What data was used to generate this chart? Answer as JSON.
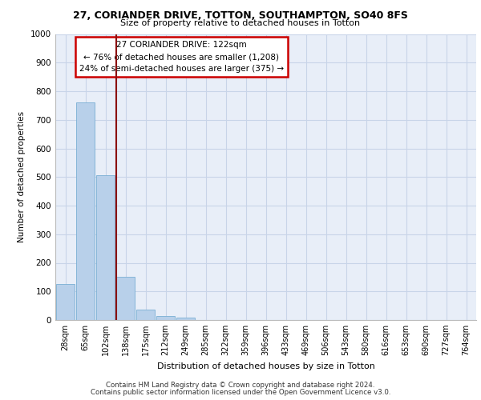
{
  "title1": "27, CORIANDER DRIVE, TOTTON, SOUTHAMPTON, SO40 8FS",
  "title2": "Size of property relative to detached houses in Totton",
  "xlabel": "Distribution of detached houses by size in Totton",
  "ylabel": "Number of detached properties",
  "bar_labels": [
    "28sqm",
    "65sqm",
    "102sqm",
    "138sqm",
    "175sqm",
    "212sqm",
    "249sqm",
    "285sqm",
    "322sqm",
    "359sqm",
    "396sqm",
    "433sqm",
    "469sqm",
    "506sqm",
    "543sqm",
    "580sqm",
    "616sqm",
    "653sqm",
    "690sqm",
    "727sqm",
    "764sqm"
  ],
  "bar_values": [
    127,
    760,
    505,
    152,
    37,
    15,
    8,
    0,
    0,
    0,
    0,
    0,
    0,
    0,
    0,
    0,
    0,
    0,
    0,
    0,
    0
  ],
  "bar_color": "#b8d0ea",
  "bar_edge_color": "#7aafd4",
  "grid_color": "#c8d4e8",
  "background_color": "#e8eef8",
  "vline_color": "#8b1010",
  "annotation_text": "27 CORIANDER DRIVE: 122sqm\n← 76% of detached houses are smaller (1,208)\n24% of semi-detached houses are larger (375) →",
  "annotation_box_color": "#ffffff",
  "annotation_border_color": "#cc0000",
  "ylim": [
    0,
    1000
  ],
  "yticks": [
    0,
    100,
    200,
    300,
    400,
    500,
    600,
    700,
    800,
    900,
    1000
  ],
  "footer1": "Contains HM Land Registry data © Crown copyright and database right 2024.",
  "footer2": "Contains public sector information licensed under the Open Government Licence v3.0."
}
